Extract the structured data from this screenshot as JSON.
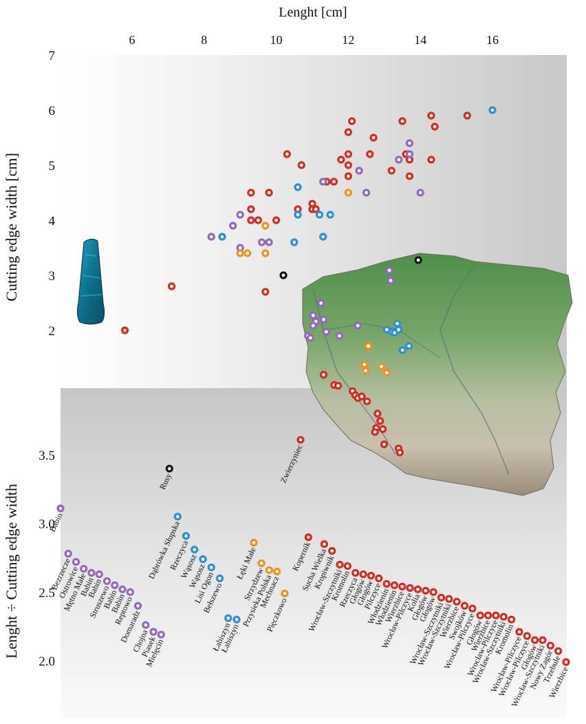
{
  "colors": {
    "red": "#d42a22",
    "purple": "#9467bd",
    "blue": "#2b8fd4",
    "orange": "#f0901e",
    "black": "#141414"
  },
  "chart_data": [
    {
      "type": "scatter",
      "title": "",
      "xlabel": "Lenght [cm]",
      "ylabel": "Cutting edge width [cm]",
      "x_ticks": [
        "6",
        "8",
        "10",
        "12",
        "14",
        "16"
      ],
      "y_ticks": [
        "7",
        "6",
        "5",
        "4",
        "3",
        "2"
      ],
      "xlim": [
        4.2,
        16.8
      ],
      "ylim": [
        1.0,
        7.0
      ],
      "x_axis_position": "top",
      "grid": false,
      "series": [
        {
          "color": "red",
          "points": [
            [
              7.1,
              2.8
            ],
            [
              9.7,
              2.7
            ],
            [
              9.3,
              4.5
            ],
            [
              9.3,
              4.2
            ],
            [
              9.3,
              4.0
            ],
            [
              9.5,
              4.0
            ],
            [
              9.8,
              4.5
            ],
            [
              10.0,
              4.0
            ],
            [
              10.3,
              5.2
            ],
            [
              10.6,
              4.2
            ],
            [
              10.7,
              5.0
            ],
            [
              11.0,
              4.3
            ],
            [
              11.0,
              4.2
            ],
            [
              11.1,
              4.2
            ],
            [
              11.4,
              4.7
            ],
            [
              11.6,
              4.7
            ],
            [
              11.8,
              5.1
            ],
            [
              12.0,
              5.6
            ],
            [
              12.0,
              5.2
            ],
            [
              12.0,
              5.0
            ],
            [
              12.0,
              4.8
            ],
            [
              12.1,
              5.8
            ],
            [
              12.6,
              5.2
            ],
            [
              12.7,
              5.5
            ],
            [
              13.2,
              4.9
            ],
            [
              13.5,
              5.8
            ],
            [
              13.6,
              5.2
            ],
            [
              13.7,
              5.1
            ],
            [
              13.7,
              4.8
            ],
            [
              14.3,
              5.9
            ],
            [
              14.4,
              5.7
            ],
            [
              14.3,
              5.1
            ],
            [
              15.3,
              5.9
            ]
          ]
        },
        {
          "color": "purple",
          "points": [
            [
              8.2,
              3.7
            ],
            [
              8.8,
              3.9
            ],
            [
              9.0,
              4.1
            ],
            [
              9.0,
              3.5
            ],
            [
              9.6,
              3.6
            ],
            [
              9.8,
              3.6
            ],
            [
              11.3,
              4.7
            ],
            [
              12.3,
              4.9
            ],
            [
              12.5,
              4.5
            ],
            [
              13.4,
              5.1
            ],
            [
              13.7,
              5.2
            ],
            [
              13.7,
              5.4
            ],
            [
              14.0,
              4.5
            ]
          ]
        },
        {
          "color": "blue",
          "points": [
            [
              8.5,
              3.7
            ],
            [
              10.5,
              3.6
            ],
            [
              10.6,
              4.6
            ],
            [
              10.6,
              4.1
            ],
            [
              11.2,
              4.1
            ],
            [
              11.3,
              3.7
            ],
            [
              11.5,
              4.1
            ],
            [
              16.0,
              6.0
            ]
          ]
        },
        {
          "color": "orange",
          "points": [
            [
              9.0,
              3.4
            ],
            [
              9.2,
              3.4
            ],
            [
              9.7,
              3.9
            ],
            [
              9.7,
              3.4
            ],
            [
              12.0,
              4.5
            ]
          ]
        },
        {
          "color": "black",
          "points": [
            [
              10.2,
              3.0
            ]
          ]
        },
        {
          "color": "red",
          "marker": "star",
          "points": [
            [
              5.8,
              2.0
            ]
          ]
        }
      ]
    },
    {
      "type": "scatter",
      "title": "",
      "xlabel": "",
      "ylabel": "Lenght ÷ Cutting edge width",
      "y_ticks": [
        "3.5",
        "3.0",
        "2.5",
        "2.0"
      ],
      "ylim": [
        1.75,
        4.0
      ],
      "grid": false,
      "points": [
        {
          "label": "Babin",
          "value": 3.11,
          "color": "purple"
        },
        {
          "label": "Bezrzecze",
          "value": 2.78,
          "color": "purple"
        },
        {
          "label": "Ostrowice",
          "value": 2.72,
          "color": "purple"
        },
        {
          "label": "Mętno Małe",
          "value": 2.67,
          "color": "purple"
        },
        {
          "label": "Babin",
          "value": 2.64,
          "color": "purple"
        },
        {
          "label": "Babin",
          "value": 2.63,
          "color": "purple"
        },
        {
          "label": "Struszewo",
          "value": 2.58,
          "color": "purple"
        },
        {
          "label": "Babin",
          "value": 2.55,
          "color": "purple"
        },
        {
          "label": "Babin",
          "value": 2.52,
          "color": "purple"
        },
        {
          "label": "Reptowo",
          "value": 2.5,
          "color": "purple"
        },
        {
          "label": "Domaradz",
          "value": 2.4,
          "color": "purple"
        },
        {
          "label": "Chojna",
          "value": 2.26,
          "color": "purple"
        },
        {
          "label": "Piasek",
          "value": 2.21,
          "color": "purple"
        },
        {
          "label": "Mielęcin",
          "value": 2.19,
          "color": "purple"
        },
        {
          "label": "Rusy",
          "value": 3.4,
          "color": "black"
        },
        {
          "label": "Dąbrówka Słupska",
          "value": 3.05,
          "color": "blue"
        },
        {
          "label": "Rzeczyca",
          "value": 2.91,
          "color": "blue"
        },
        {
          "label": "Wąsosz",
          "value": 2.81,
          "color": "blue"
        },
        {
          "label": "Wąsosz",
          "value": 2.74,
          "color": "blue"
        },
        {
          "label": "Lisi Ogon",
          "value": 2.68,
          "color": "blue"
        },
        {
          "label": "Bełszewo",
          "value": 2.6,
          "color": "blue"
        },
        {
          "label": "Łabiszyn",
          "value": 2.31,
          "color": "blue"
        },
        {
          "label": "Łabiszyn",
          "value": 2.3,
          "color": "blue"
        },
        {
          "label": "Łęki Małe",
          "value": 2.86,
          "color": "orange"
        },
        {
          "label": "Strzydzew",
          "value": 2.71,
          "color": "orange"
        },
        {
          "label": "Przysieka Polska",
          "value": 2.66,
          "color": "orange"
        },
        {
          "label": "Mechnacz",
          "value": 2.65,
          "color": "orange"
        },
        {
          "label": "Pięczkowo",
          "value": 2.49,
          "color": "orange"
        },
        {
          "label": "Zwierzyniec",
          "value": 3.61,
          "color": "red"
        },
        {
          "label": "Kopernik",
          "value": 2.9,
          "color": "red",
          "marker": "star"
        },
        {
          "label": "Sucha Wielka",
          "value": 2.85,
          "color": "red"
        },
        {
          "label": "Kropiwnik",
          "value": 2.8,
          "color": "red"
        },
        {
          "label": "Wrocław-Szczytniki",
          "value": 2.7,
          "color": "red"
        },
        {
          "label": "Kromolin",
          "value": 2.69,
          "color": "red"
        },
        {
          "label": "Rzeczyca",
          "value": 2.64,
          "color": "red"
        },
        {
          "label": "Głogów",
          "value": 2.63,
          "color": "red"
        },
        {
          "label": "Głogów",
          "value": 2.62,
          "color": "red"
        },
        {
          "label": "Pilczyce",
          "value": 2.6,
          "color": "red"
        },
        {
          "label": "Włodzienin",
          "value": 2.56,
          "color": "red"
        },
        {
          "label": "Włodzienin",
          "value": 2.55,
          "color": "red"
        },
        {
          "label": "Wierzbice",
          "value": 2.54,
          "color": "red"
        },
        {
          "label": "Wrocław-Pilczyce",
          "value": 2.53,
          "color": "red"
        },
        {
          "label": "Kolia",
          "value": 2.52,
          "color": "red"
        },
        {
          "label": "Głogów",
          "value": 2.51,
          "color": "red"
        },
        {
          "label": "Głogów",
          "value": 2.5,
          "color": "red"
        },
        {
          "label": "Wrocław-Szczytniki",
          "value": 2.46,
          "color": "red"
        },
        {
          "label": "Wrocław-Szczytniki",
          "value": 2.45,
          "color": "red"
        },
        {
          "label": "Wierzbice",
          "value": 2.43,
          "color": "red"
        },
        {
          "label": "Swojków",
          "value": 2.4,
          "color": "red"
        },
        {
          "label": "Wrocław-Pilczyce",
          "value": 2.38,
          "color": "red"
        },
        {
          "label": "Głogów",
          "value": 2.33,
          "color": "red"
        },
        {
          "label": "Wierzbice",
          "value": 2.33,
          "color": "red"
        },
        {
          "label": "Wrocław-Pilczyce",
          "value": 2.33,
          "color": "red"
        },
        {
          "label": "Wrocław-Szczytniki",
          "value": 2.32,
          "color": "red"
        },
        {
          "label": "Kromolin",
          "value": 2.3,
          "color": "red"
        },
        {
          "label": "Wrocław-Pilczyce",
          "value": 2.21,
          "color": "red"
        },
        {
          "label": "Wrocław-Pilczyce",
          "value": 2.18,
          "color": "red"
        },
        {
          "label": "Głogów",
          "value": 2.15,
          "color": "red"
        },
        {
          "label": "Wrocław-Szczytniki",
          "value": 2.15,
          "color": "red"
        },
        {
          "label": "Nowy Zagór",
          "value": 2.11,
          "color": "red"
        },
        {
          "label": "Trzebule",
          "value": 2.07,
          "color": "red"
        },
        {
          "label": "Wierzbice",
          "value": 1.99,
          "color": "red"
        }
      ]
    }
  ],
  "map": {
    "type": "find-spots",
    "points": [
      {
        "color": "black",
        "lon": 18.5,
        "lat": 54.75
      },
      {
        "color": "purple",
        "lon": 17.4,
        "lat": 54.5
      },
      {
        "color": "purple",
        "lon": 17.45,
        "lat": 54.25
      },
      {
        "color": "purple",
        "lon": 14.8,
        "lat": 53.7
      },
      {
        "color": "purple",
        "lon": 14.5,
        "lat": 53.4
      },
      {
        "color": "purple",
        "lon": 14.6,
        "lat": 53.25
      },
      {
        "color": "purple",
        "lon": 14.9,
        "lat": 53.3
      },
      {
        "color": "purple",
        "lon": 14.5,
        "lat": 53.15
      },
      {
        "color": "purple",
        "lon": 15.0,
        "lat": 53.0
      },
      {
        "color": "purple",
        "lon": 15.5,
        "lat": 52.9
      },
      {
        "color": "purple",
        "lon": 16.2,
        "lat": 53.15
      },
      {
        "color": "purple",
        "lon": 14.3,
        "lat": 52.9
      },
      {
        "color": "purple",
        "lon": 14.4,
        "lat": 52.85
      },
      {
        "color": "blue",
        "lon": 17.7,
        "lat": 53.2
      },
      {
        "color": "blue",
        "lon": 17.3,
        "lat": 53.05
      },
      {
        "color": "blue",
        "lon": 17.5,
        "lat": 53.0
      },
      {
        "color": "blue",
        "lon": 17.6,
        "lat": 52.98
      },
      {
        "color": "blue",
        "lon": 17.75,
        "lat": 53.05
      },
      {
        "color": "blue",
        "lon": 17.9,
        "lat": 52.55
      },
      {
        "color": "blue",
        "lon": 18.15,
        "lat": 52.65
      },
      {
        "color": "orange",
        "lon": 16.6,
        "lat": 52.65
      },
      {
        "color": "orange",
        "lon": 16.45,
        "lat": 52.2
      },
      {
        "color": "orange",
        "lon": 16.5,
        "lat": 52.05
      },
      {
        "color": "orange",
        "lon": 17.1,
        "lat": 52.15
      },
      {
        "color": "orange",
        "lon": 17.3,
        "lat": 52.0
      },
      {
        "color": "red",
        "lon": 14.9,
        "lat": 51.95
      },
      {
        "color": "red",
        "lon": 15.3,
        "lat": 51.7
      },
      {
        "color": "red",
        "lon": 15.45,
        "lat": 51.68
      },
      {
        "color": "red",
        "lon": 16.0,
        "lat": 51.55
      },
      {
        "color": "red",
        "lon": 16.1,
        "lat": 51.45
      },
      {
        "color": "red",
        "lon": 16.2,
        "lat": 51.38
      },
      {
        "color": "red",
        "lon": 16.35,
        "lat": 51.42
      },
      {
        "color": "red",
        "lon": 16.55,
        "lat": 51.3
      },
      {
        "color": "red",
        "lon": 16.95,
        "lat": 51.0
      },
      {
        "color": "red",
        "lon": 17.05,
        "lat": 50.82
      },
      {
        "color": "red",
        "lon": 16.9,
        "lat": 50.65
      },
      {
        "color": "red",
        "lon": 17.15,
        "lat": 50.62
      },
      {
        "color": "red",
        "lon": 16.85,
        "lat": 50.55
      },
      {
        "color": "red",
        "lon": 17.75,
        "lat": 50.15
      },
      {
        "color": "red",
        "lon": 17.8,
        "lat": 50.05
      },
      {
        "color": "red",
        "lon": 17.2,
        "lat": 50.25,
        "marker": "star"
      }
    ]
  },
  "inset_image": "polished stone axe photo"
}
